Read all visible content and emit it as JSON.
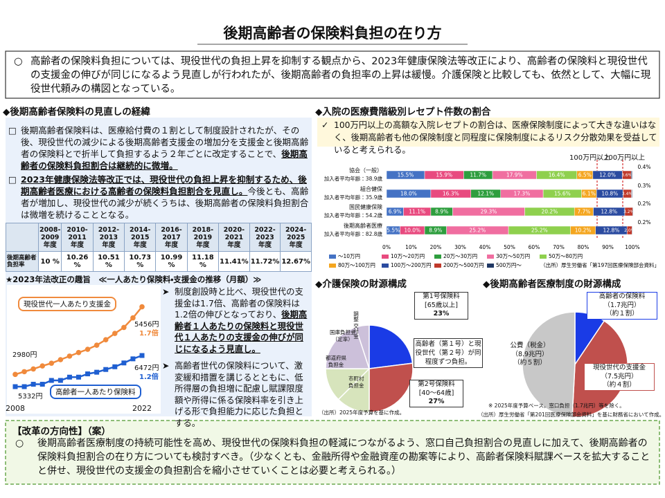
{
  "header": {
    "title": "後期高齢者の保険料負担の在り方"
  },
  "intro": {
    "mark": "○",
    "segments": [
      {
        "text": "高齢者の保険料負担については、現役世代の負担上昇を抑制する観点から、2023年健康保険法等改正により、高齢者の保険料と現役世代の支援金の伸びが同じになるよう見直しが行われたが、後期高齢者の負担率の上昇は緩慢。介護保険と比較しても、依然として、大幅に現役世代頼みの構図となっている。",
        "style": "plain"
      }
    ]
  },
  "history": {
    "heading": "◆後期高齢者保険料の見直しの経緯",
    "items": [
      {
        "mark": "□",
        "segments": [
          {
            "text": "後期高齢者保険料は、医療給付費の１割として制度設計されたが、その後、現役世代の減少による後期高齢者支援金の増加分を支援金と後期高齢者の保険料とで折半して負担するよう２年ごとに改定することで、",
            "style": "plain"
          },
          {
            "text": "後期高齢者の保険料負担割合は継続的に微増。",
            "style": "bold"
          }
        ]
      },
      {
        "mark": "□",
        "segments": [
          {
            "text": "2023年健康保険法等改正では、現役世代の負担上昇を抑制するため、後期高齢者医療における高齢者の保険料負担割合を見直し。",
            "style": "bold"
          },
          {
            "text": "今後とも、高齢者が増加し、現役世代の減少が続くうちは、後期高齢者の保険料負担割合は微増を続けることとなる。",
            "style": "plain"
          }
        ]
      }
    ],
    "table": {
      "header": [
        "2008-\n2009\n年度",
        "2010-\n2011\n年度",
        "2012-\n2013\n年度",
        "2014-\n2015\n年度",
        "2016-\n2017\n年度",
        "2018-\n2019\n年度",
        "2020-\n2021\n年度",
        "2022-\n2023\n年度",
        "2024-\n2025\n年度"
      ],
      "row_label": "後期高齢者\n負担率",
      "cells": [
        "10 %",
        "10.26 %",
        "10.51 %",
        "10.73 %",
        "10.99 %",
        "11.18 %",
        "11.41%",
        "11.72%",
        "12.67%"
      ]
    },
    "bullets": [
      {
        "mark": "➤",
        "segments": [
          {
            "text": "制度創設時と比べ、現役世代の支援金は1.7倍、高齢者の保険料は1.2倍の伸びとなっており、",
            "style": "plain"
          },
          {
            "text": "後期高齢者１人あたりの保険料と現役世代１人あたりの支援金の伸びが同じになるよう見直し。",
            "style": "bold"
          }
        ]
      },
      {
        "mark": "➤",
        "segments": [
          {
            "text": "高齢者世代の保険料について、激変緩和措置を講じるとともに、低所得層の負担増に配慮し賦課限度額や所得に係る保険料率を引き上げる形で負担能力に応じた負担とする。",
            "style": "plain"
          }
        ]
      }
    ]
  },
  "receipt_note": {
    "mark": "✓",
    "segments": [
      {
        "text": "100万円以上の高額な入院レセプトの割合は、医療保険制度によって大きな違いはなく、後期高齢者も他の保険制度と同程度に保険制度によるリスク分散効果を受益していると考えられる。",
        "style": "plain"
      }
    ]
  },
  "reform": {
    "heading": "【改革の方向性】（案）",
    "mark": "○",
    "segments": [
      {
        "text": "後期高齢者医療制度の持続可能性を高め、現役世代の保険料負担の軽減につながるよう、窓口自己負担割合の見直しに加えて、後期高齢者の保険料負担割合の在り方についても検討すべき。（少なくとも、金融所得や金融資産の勘案等により、高齢者保険料賦課ベースを拡大することと併せ、現役世代の支援金の負担割合を縮小させていくことは必要と考えられる。）",
        "style": "plain"
      }
    ]
  },
  "chart_data": [
    {
      "type": "line",
      "title": "★2023年法改正の趣旨　≪一人あたり保険料・支援金の推移（月額）≫",
      "x": [
        2008,
        2009,
        2010,
        2011,
        2012,
        2013,
        2014,
        2015,
        2016,
        2017,
        2018,
        2019,
        2020,
        2021,
        2022
      ],
      "xlim": [
        2008,
        2022
      ],
      "xticks": [
        2008,
        2022
      ],
      "ylim": [
        2000,
        5800
      ],
      "y2lim": [
        4800,
        8600
      ],
      "series": [
        {
          "name": "現役世代一人あたり支援金",
          "color": "#f08a3c",
          "marker": "circle",
          "values": [
            2980,
            3080,
            3180,
            3290,
            3390,
            3520,
            3650,
            3780,
            3900,
            4050,
            4250,
            4480,
            4700,
            5050,
            5456
          ],
          "start_label": "2980円",
          "end_label": "5456円",
          "ratio_label": "1.7倍"
        },
        {
          "name": "高齢者一人あたり保険料",
          "color": "#1f5fd1",
          "marker": "square",
          "axis": "y2",
          "values": [
            5332,
            5332,
            5420,
            5420,
            5560,
            5560,
            5680,
            5680,
            5800,
            5860,
            5960,
            6060,
            6200,
            6350,
            6472
          ],
          "start_label": "5332円",
          "end_label": "6472円",
          "ratio_label": "1.2倍"
        }
      ]
    },
    {
      "type": "bar",
      "orientation": "horizontal",
      "stacked": true,
      "title": "◆入院の医療費階級別レセプト件数の割合",
      "categories": [
        "協会（一般）",
        "組合健保",
        "国民健康保険",
        "後期高齢者医療"
      ],
      "category_notes": [
        "加入者平均年齢：38.9歳",
        "加入者平均年齢：35.9歳",
        "加入者平均年齢：54.2歳",
        "加入者平均年齢：82.8歳"
      ],
      "bracket_labels": [
        "100万円以上",
        "200万円以上"
      ],
      "xlim": [
        0,
        100
      ],
      "xticks": [
        {
          "value": 0,
          "label": "0%"
        },
        {
          "value": 10,
          "label": "10%"
        },
        {
          "value": 20,
          "label": "20%"
        },
        {
          "value": 30,
          "label": "30%"
        },
        {
          "value": 40,
          "label": "40%"
        },
        {
          "value": 50,
          "label": "50%"
        },
        {
          "value": 60,
          "label": "60%"
        },
        {
          "value": 70,
          "label": "70%"
        },
        {
          "value": 80,
          "label": "80%"
        },
        {
          "value": 90,
          "label": "90%"
        },
        {
          "value": 100,
          "label": "100%"
        }
      ],
      "series": [
        {
          "name": "～10万円",
          "color": "#4472c4",
          "values": [
            15.5,
            18.0,
            6.9,
            5.5
          ],
          "value_labels": [
            "15.5%",
            "18.0%",
            "6.9%",
            "5.5%"
          ]
        },
        {
          "name": "10万～20万円",
          "color": "#e84a7f",
          "values": [
            15.9,
            16.3,
            11.1,
            10.0
          ],
          "value_labels": [
            "15.9%",
            "16.3%",
            "11.1%",
            "10.0%"
          ]
        },
        {
          "name": "20万～30万円",
          "color": "#2e9e3e",
          "values": [
            11.7,
            12.1,
            8.9,
            8.9
          ],
          "value_labels": [
            "11.7%",
            "12.1%",
            "8.9%",
            "8.9%"
          ]
        },
        {
          "name": "30万～50万円",
          "color": "#f06ea0",
          "values": [
            17.9,
            17.3,
            29.3,
            25.2
          ],
          "value_labels": [
            "17.9%",
            "17.3%",
            "29.3%",
            "25.2%"
          ]
        },
        {
          "name": "50万～80万円",
          "color": "#8fd04e",
          "values": [
            16.4,
            15.6,
            20.2,
            25.2
          ],
          "value_labels": [
            "16.4%",
            "15.6%",
            "20.2%",
            "25.2%"
          ]
        },
        {
          "name": "80万～100万円",
          "color": "#f4a620",
          "values": [
            6.5,
            6.1,
            7.7,
            10.2
          ],
          "value_labels": [
            "6.5%",
            "6.1%",
            "7.7%",
            "10.2%"
          ]
        },
        {
          "name": "100万～200万円",
          "color": "#2b4ba0",
          "values": [
            12.0,
            10.8,
            12.8,
            12.8
          ],
          "value_labels": [
            "12.0%",
            "10.8%",
            "12.8%",
            "12.8%"
          ]
        },
        {
          "name": "200万～500万円",
          "color": "#c0392b",
          "values": [
            3.6,
            3.4,
            3.2,
            2.0
          ],
          "value_labels": [
            "3.6%",
            "3.4%",
            "3.2%",
            "2.0%"
          ]
        },
        {
          "name": "500万円～",
          "color": "#203864",
          "label_position": "outside",
          "values": [
            0.4,
            0.3,
            0.2,
            0.2
          ],
          "value_labels": [
            "0.4%",
            "0.3%",
            "0.2%",
            "0.2%"
          ]
        }
      ],
      "source": "（出所）厚生労働省「第197回医療保険部会資料」"
    },
    {
      "type": "pie",
      "title": "◆介護保険の財源構成",
      "categories": [
        "第1号保険料",
        "第2号保険料",
        "市町村\n負担金",
        "都道府県\n負担金",
        "国庫負担金\n（定率）",
        "調整\n交付金"
      ],
      "category_notes": [
        "[65歳以上]",
        "[40～64歳]",
        null,
        null,
        null,
        null
      ],
      "values": [
        23,
        27,
        12.5,
        12.5,
        20,
        5
      ],
      "value_labels": [
        "23%",
        "27%",
        null,
        null,
        null,
        null
      ],
      "colors": [
        "#1a3be6",
        "#c0504d",
        "#d7e4bc",
        "#d7e4bc",
        "#ccc0da",
        "#ccc0da"
      ],
      "annotation": "高齢者（第１号）と現役世代（第２号）が同程度ずつ負担。",
      "source": "（出所）2025年度予算を基に作成。"
    },
    {
      "type": "pie",
      "title": "◆後期高齢者医療制度の財源構成",
      "categories": [
        "高齢者の保険料",
        "現役世代の支援金",
        "公費（税金）"
      ],
      "values": [
        1.7,
        7.5,
        8.9
      ],
      "value_labels": [
        "（1.7兆円）",
        "（7.5兆円）",
        "（8.9兆円）"
      ],
      "share_labels": [
        "（約１割）",
        "（約４割）",
        "（約５割）"
      ],
      "colors": [
        "#1a3be6",
        "#c0504d",
        "#c8c8c8"
      ],
      "notes": [
        "※ 2025年度予算ベース。窓口負担（1.7兆円）等を除く。",
        "（出所）厚生労働省「第201回医療保険部会資料」を基に財務省において作成。"
      ]
    }
  ]
}
